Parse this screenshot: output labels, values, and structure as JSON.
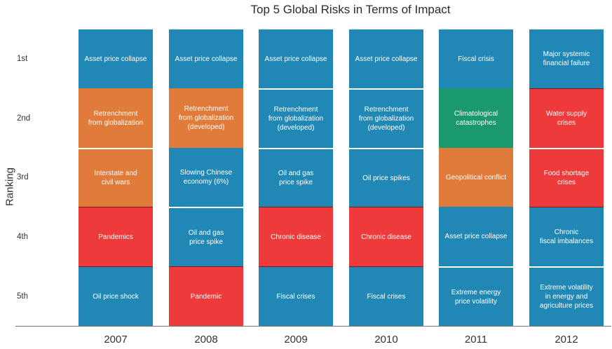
{
  "chart_data": {
    "type": "table",
    "title": "Top 5 Global Risks in Terms of Impact",
    "ylabel": "Ranking",
    "ranks": [
      "1st",
      "2nd",
      "3rd",
      "4th",
      "5th"
    ],
    "years": [
      "2007",
      "2008",
      "2009",
      "2010",
      "2011",
      "2012"
    ],
    "colors": {
      "economic": "#2188B6",
      "geopolitical": "#E07B39",
      "societal": "#EE3A3A",
      "environmental": "#1A9A6C"
    },
    "columns": [
      {
        "year": "2007",
        "cells": [
          {
            "label": "Asset price collapse",
            "category": "economic"
          },
          {
            "label": "Retrenchment\nfrom globalization",
            "category": "geopolitical"
          },
          {
            "label": "Interstate and\ncivil wars",
            "category": "geopolitical"
          },
          {
            "label": "Pandemics",
            "category": "societal"
          },
          {
            "label": "Oil price shock",
            "category": "economic"
          }
        ]
      },
      {
        "year": "2008",
        "cells": [
          {
            "label": "Asset price collapse",
            "category": "economic"
          },
          {
            "label": "Retrenchment\nfrom globalization\n(developed)",
            "category": "geopolitical"
          },
          {
            "label": "Slowing Chinese\neconomy (6%)",
            "category": "economic"
          },
          {
            "label": "Oil and gas\nprice spike",
            "category": "economic"
          },
          {
            "label": "Pandemic",
            "category": "societal"
          }
        ]
      },
      {
        "year": "2009",
        "cells": [
          {
            "label": "Asset price collapse",
            "category": "economic"
          },
          {
            "label": "Retrenchment\nfrom globalization\n(developed)",
            "category": "economic"
          },
          {
            "label": "Oil and gas\nprice spike",
            "category": "economic"
          },
          {
            "label": "Chronic disease",
            "category": "societal"
          },
          {
            "label": "Fiscal crises",
            "category": "economic"
          }
        ]
      },
      {
        "year": "2010",
        "cells": [
          {
            "label": "Asset price collapse",
            "category": "economic"
          },
          {
            "label": "Retrenchment\nfrom globalization\n(developed)",
            "category": "economic"
          },
          {
            "label": "Oil price spikes",
            "category": "economic"
          },
          {
            "label": "Chronic disease",
            "category": "societal"
          },
          {
            "label": "Fiscal crises",
            "category": "economic"
          }
        ]
      },
      {
        "year": "2011",
        "cells": [
          {
            "label": "Fiscal crisis",
            "category": "economic"
          },
          {
            "label": "Climatological\ncatastrophes",
            "category": "environmental"
          },
          {
            "label": "Geopolitical conflict",
            "category": "geopolitical"
          },
          {
            "label": "Asset price collapse",
            "category": "economic"
          },
          {
            "label": "Extreme energy\nprice volatility",
            "category": "economic"
          }
        ]
      },
      {
        "year": "2012",
        "cells": [
          {
            "label": "Major systemic\nfinancial failure",
            "category": "economic"
          },
          {
            "label": "Water supply\ncrises",
            "category": "societal"
          },
          {
            "label": "Food shortage\ncrises",
            "category": "societal"
          },
          {
            "label": "Chronic\nfiscal imbalances",
            "category": "economic"
          },
          {
            "label": "Extreme volatility\nin energy and\nagriculture prices",
            "category": "economic"
          }
        ]
      }
    ]
  }
}
